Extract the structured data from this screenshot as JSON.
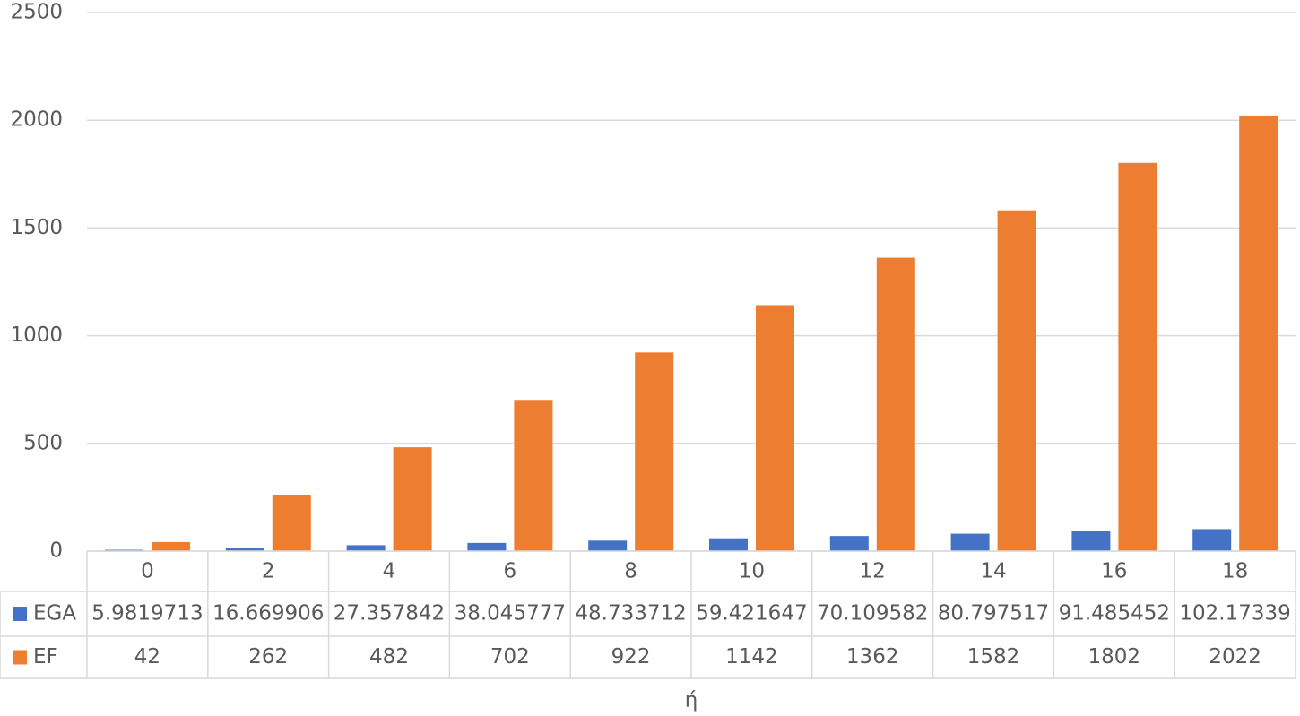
{
  "chart_data": {
    "type": "bar",
    "x_label": "ή",
    "categories": [
      "0",
      "2",
      "4",
      "6",
      "8",
      "10",
      "12",
      "14",
      "16",
      "18"
    ],
    "series": [
      {
        "name": "EGA",
        "color": "#4472c4",
        "values": [
          5.9819713,
          16.669906,
          27.357842,
          38.045777,
          48.733712,
          59.421647,
          70.109582,
          80.797517,
          91.485452,
          102.17339
        ]
      },
      {
        "name": "EF",
        "color": "#ed7d31",
        "values": [
          42,
          262,
          482,
          702,
          922,
          1142,
          1362,
          1582,
          1802,
          2022
        ]
      }
    ],
    "ylim": [
      0,
      2500
    ],
    "yticks": [
      0,
      500,
      1000,
      1500,
      2000,
      2500
    ],
    "grid": true,
    "data_table": true
  }
}
